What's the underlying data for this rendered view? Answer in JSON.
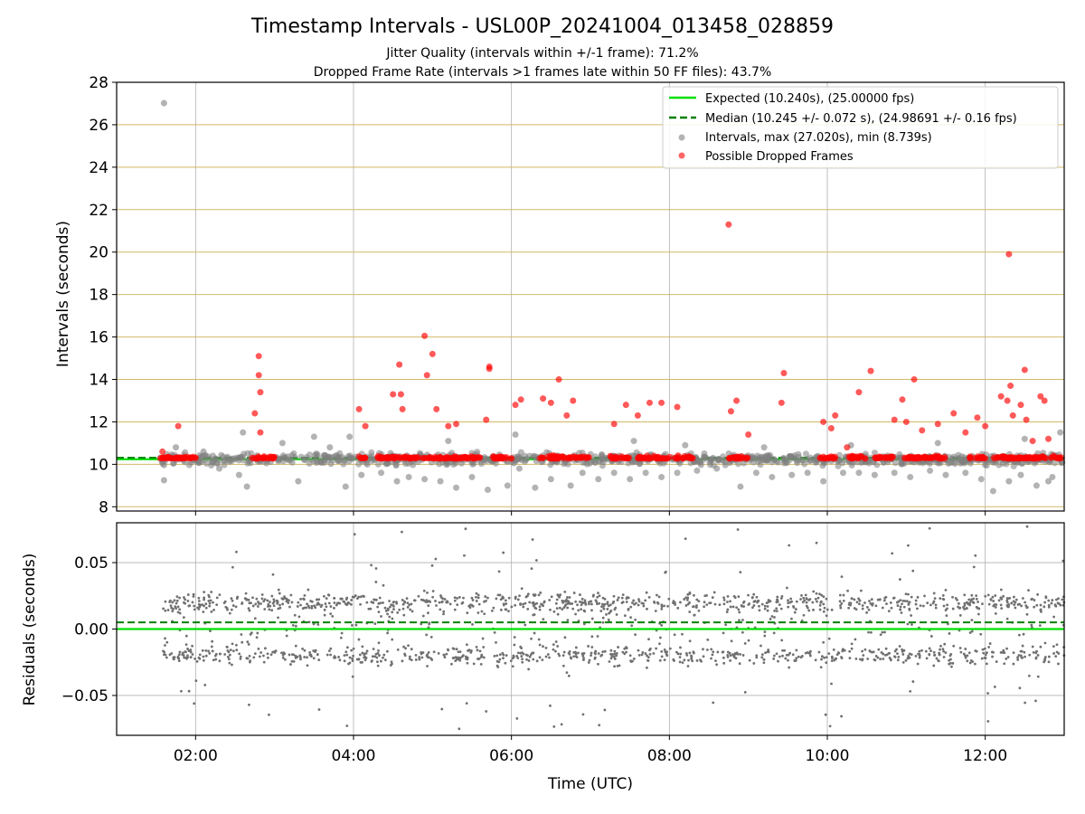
{
  "figure": {
    "title": "Timestamp Intervals - USL00P_20241004_013458_028859",
    "subtitle_1": "Jitter Quality (intervals within +/-1 frame): 71.2%",
    "subtitle_2": "Dropped Frame Rate (intervals >1 frames late within 50 FF files): 43.7%"
  },
  "colors": {
    "expected": "#00e000",
    "median": "#008000",
    "intervals": "#808080",
    "dropped": "#ff0000",
    "hgrid_top": "#d2b964",
    "grid": "#b0b0b0",
    "residuals": "#707070"
  },
  "chart_data": [
    {
      "type": "scatter",
      "ylabel": "Intervals (seconds)",
      "xlabel": "",
      "xlim": [
        "01:00",
        "13:00"
      ],
      "ylim": [
        7.8,
        28
      ],
      "yticks": [
        "8",
        "10",
        "12",
        "14",
        "16",
        "18",
        "20",
        "22",
        "24",
        "26",
        "28"
      ],
      "xticks": [
        "02:00",
        "04:00",
        "06:00",
        "08:00",
        "10:00",
        "12:00"
      ],
      "grid": true,
      "legend_position": "top-right",
      "lines": [
        {
          "name": "Expected (10.240s), (25.00000 fps)",
          "y": 10.24,
          "style": "solid"
        },
        {
          "name": "Median (10.245 +/- 0.072 s), (24.98691 +/- 0.16 fps)",
          "y": 10.245,
          "style": "dashed"
        }
      ],
      "series": [
        {
          "name": "Intervals, max (27.020s), min (8.739s)",
          "points": [
            [
              1.6,
              27.02
            ],
            [
              1.6,
              9.25
            ],
            [
              1.75,
              10.8
            ],
            [
              2.1,
              10.6
            ],
            [
              2.3,
              9.8
            ],
            [
              2.55,
              9.5
            ],
            [
              2.65,
              8.95
            ],
            [
              2.6,
              11.5
            ],
            [
              3.1,
              11.0
            ],
            [
              3.3,
              9.2
            ],
            [
              3.5,
              11.3
            ],
            [
              3.9,
              8.95
            ],
            [
              3.95,
              11.3
            ],
            [
              4.1,
              9.5
            ],
            [
              4.35,
              9.6
            ],
            [
              4.55,
              9.2
            ],
            [
              4.7,
              9.4
            ],
            [
              4.9,
              9.3
            ],
            [
              5.1,
              9.2
            ],
            [
              5.3,
              8.9
            ],
            [
              5.5,
              9.4
            ],
            [
              5.7,
              8.8
            ],
            [
              5.95,
              9.0
            ],
            [
              6.05,
              11.4
            ],
            [
              6.3,
              8.9
            ],
            [
              6.5,
              9.3
            ],
            [
              6.75,
              9.0
            ],
            [
              6.9,
              9.6
            ],
            [
              7.1,
              9.3
            ],
            [
              7.3,
              9.6
            ],
            [
              7.5,
              9.3
            ],
            [
              7.55,
              11.1
            ],
            [
              7.7,
              9.6
            ],
            [
              7.9,
              9.4
            ],
            [
              8.1,
              9.6
            ],
            [
              8.35,
              9.7
            ],
            [
              8.6,
              9.8
            ],
            [
              8.9,
              8.95
            ],
            [
              9.1,
              9.6
            ],
            [
              9.3,
              9.4
            ],
            [
              9.55,
              9.5
            ],
            [
              9.75,
              9.6
            ],
            [
              9.95,
              9.2
            ],
            [
              10.2,
              9.6
            ],
            [
              10.4,
              9.6
            ],
            [
              10.6,
              9.5
            ],
            [
              10.85,
              9.6
            ],
            [
              11.05,
              9.4
            ],
            [
              11.3,
              9.7
            ],
            [
              11.5,
              9.5
            ],
            [
              11.75,
              9.6
            ],
            [
              11.95,
              9.3
            ],
            [
              12.1,
              8.74
            ],
            [
              12.3,
              9.2
            ],
            [
              12.45,
              9.5
            ],
            [
              12.65,
              9.0
            ],
            [
              12.8,
              9.2
            ],
            [
              12.95,
              11.5
            ],
            [
              12.85,
              9.4
            ],
            [
              12.5,
              11.2
            ],
            [
              3.7,
              10.8
            ],
            [
              5.2,
              11.1
            ],
            [
              6.1,
              9.8
            ],
            [
              8.2,
              10.9
            ],
            [
              9.2,
              10.8
            ],
            [
              10.3,
              10.9
            ],
            [
              11.4,
              11.0
            ]
          ]
        },
        {
          "name": "Possible Dropped Frames",
          "points": [
            [
              1.58,
              10.6
            ],
            [
              1.78,
              11.8
            ],
            [
              2.75,
              12.4
            ],
            [
              2.8,
              15.1
            ],
            [
              2.8,
              14.2
            ],
            [
              2.82,
              13.4
            ],
            [
              2.82,
              11.5
            ],
            [
              4.07,
              12.6
            ],
            [
              4.15,
              11.8
            ],
            [
              4.5,
              13.3
            ],
            [
              4.58,
              14.7
            ],
            [
              4.6,
              13.3
            ],
            [
              4.62,
              12.6
            ],
            [
              4.9,
              16.05
            ],
            [
              4.93,
              14.2
            ],
            [
              5.0,
              15.2
            ],
            [
              5.05,
              12.6
            ],
            [
              5.2,
              11.8
            ],
            [
              5.3,
              11.9
            ],
            [
              5.68,
              12.1
            ],
            [
              5.72,
              14.6
            ],
            [
              5.72,
              14.5
            ],
            [
              6.05,
              12.8
            ],
            [
              6.12,
              13.05
            ],
            [
              6.4,
              13.1
            ],
            [
              6.5,
              12.9
            ],
            [
              6.6,
              14.0
            ],
            [
              6.7,
              12.3
            ],
            [
              6.78,
              13.0
            ],
            [
              7.3,
              11.9
            ],
            [
              7.45,
              12.8
            ],
            [
              7.6,
              12.3
            ],
            [
              7.75,
              12.9
            ],
            [
              7.9,
              12.9
            ],
            [
              8.1,
              12.7
            ],
            [
              8.75,
              21.3
            ],
            [
              8.78,
              12.5
            ],
            [
              8.85,
              13.0
            ],
            [
              9.0,
              11.4
            ],
            [
              9.42,
              12.9
            ],
            [
              9.45,
              14.3
            ],
            [
              9.95,
              12.0
            ],
            [
              10.05,
              11.7
            ],
            [
              10.1,
              12.3
            ],
            [
              10.25,
              10.8
            ],
            [
              10.4,
              13.4
            ],
            [
              10.55,
              14.4
            ],
            [
              10.85,
              12.1
            ],
            [
              10.95,
              13.05
            ],
            [
              11.0,
              12.0
            ],
            [
              11.1,
              14.0
            ],
            [
              11.2,
              11.6
            ],
            [
              11.4,
              11.9
            ],
            [
              11.6,
              12.4
            ],
            [
              11.75,
              11.5
            ],
            [
              11.9,
              12.2
            ],
            [
              12.0,
              11.8
            ],
            [
              12.2,
              13.2
            ],
            [
              12.28,
              13.0
            ],
            [
              12.3,
              19.9
            ],
            [
              12.32,
              13.7
            ],
            [
              12.35,
              12.3
            ],
            [
              12.45,
              12.8
            ],
            [
              12.5,
              14.45
            ],
            [
              12.52,
              12.1
            ],
            [
              12.6,
              11.1
            ],
            [
              12.7,
              13.2
            ],
            [
              12.75,
              13.0
            ],
            [
              12.8,
              11.2
            ]
          ]
        }
      ]
    },
    {
      "type": "scatter",
      "ylabel": "Residuals (seconds)",
      "xlabel": "Time (UTC)",
      "xlim": [
        "01:00",
        "13:00"
      ],
      "ylim": [
        -0.08,
        0.08
      ],
      "yticks": [
        "−0.05",
        "0.00",
        "0.05"
      ],
      "xticks": [
        "02:00",
        "04:00",
        "06:00",
        "08:00",
        "10:00",
        "12:00"
      ],
      "grid": true,
      "lines": [
        {
          "name": "Expected",
          "y": 0.0,
          "style": "solid"
        },
        {
          "name": "Median",
          "y": 0.005,
          "style": "dashed"
        }
      ],
      "series": [
        {
          "name": "Residuals",
          "x_range": [
            "01:35",
            "13:00"
          ],
          "y_range": [
            -0.08,
            0.08
          ],
          "approx_points": 1800
        }
      ]
    }
  ]
}
